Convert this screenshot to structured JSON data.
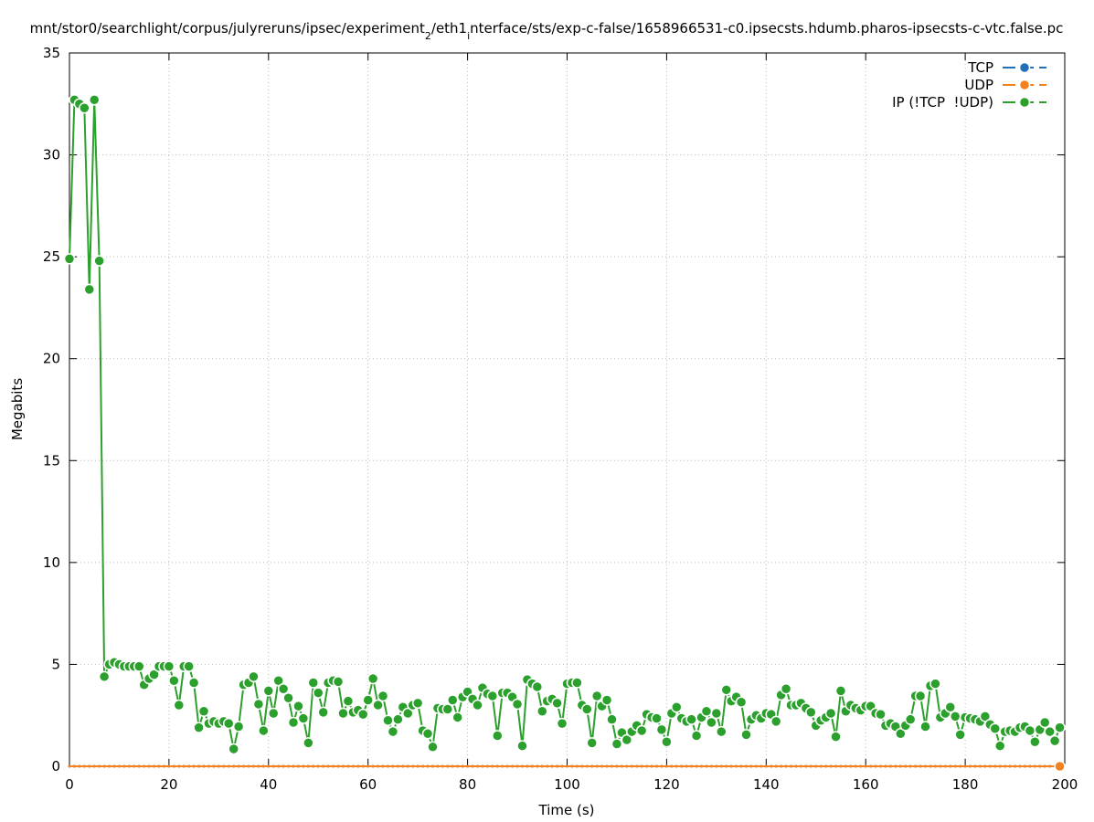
{
  "chart_data": {
    "type": "line",
    "title": [
      {
        "text": "mnt/stor0/searchlight/corpus/julyreruns/ipsec/experiment",
        "sub": false
      },
      {
        "text": "2",
        "sub": true
      },
      {
        "text": "/eth1",
        "sub": false
      },
      {
        "text": "i",
        "sub": true
      },
      {
        "text": "nterface/sts/exp-c-false/1658966531-c0.ipsecsts.hdumb.pharos-ipsecsts-c-vtc.false.pc",
        "sub": false
      }
    ],
    "x_label": "Time (s)",
    "y_label": "Megabits",
    "xlim": [
      0,
      200
    ],
    "xticks": [
      0,
      20,
      40,
      60,
      80,
      100,
      120,
      140,
      160,
      180,
      200
    ],
    "ylim": [
      0,
      35
    ],
    "yticks": [
      0,
      5,
      10,
      15,
      20,
      25,
      30,
      35
    ],
    "grid": true,
    "legend": "top-right",
    "x": [
      0,
      1,
      2,
      3,
      4,
      5,
      6,
      7,
      8,
      9,
      10,
      11,
      12,
      13,
      14,
      15,
      16,
      17,
      18,
      19,
      20,
      21,
      22,
      23,
      24,
      25,
      26,
      27,
      28,
      29,
      30,
      31,
      32,
      33,
      34,
      35,
      36,
      37,
      38,
      39,
      40,
      41,
      42,
      43,
      44,
      45,
      46,
      47,
      48,
      49,
      50,
      51,
      52,
      53,
      54,
      55,
      56,
      57,
      58,
      59,
      60,
      61,
      62,
      63,
      64,
      65,
      66,
      67,
      68,
      69,
      70,
      71,
      72,
      73,
      74,
      75,
      76,
      77,
      78,
      79,
      80,
      81,
      82,
      83,
      84,
      85,
      86,
      87,
      88,
      89,
      90,
      91,
      92,
      93,
      94,
      95,
      96,
      97,
      98,
      99,
      100,
      101,
      102,
      103,
      104,
      105,
      106,
      107,
      108,
      109,
      110,
      111,
      112,
      113,
      114,
      115,
      116,
      117,
      118,
      119,
      120,
      121,
      122,
      123,
      124,
      125,
      126,
      127,
      128,
      129,
      130,
      131,
      132,
      133,
      134,
      135,
      136,
      137,
      138,
      139,
      140,
      141,
      142,
      143,
      144,
      145,
      146,
      147,
      148,
      149,
      150,
      151,
      152,
      153,
      154,
      155,
      156,
      157,
      158,
      159,
      160,
      161,
      162,
      163,
      164,
      165,
      166,
      167,
      168,
      169,
      170,
      171,
      172,
      173,
      174,
      175,
      176,
      177,
      178,
      179,
      180,
      181,
      182,
      183,
      184,
      185,
      186,
      187,
      188,
      189,
      190,
      191,
      192,
      193,
      194,
      195,
      196,
      197,
      198,
      199
    ],
    "series": [
      {
        "name": "TCP",
        "color": "#1f6eb7",
        "values": [
          0,
          0,
          0,
          0,
          0,
          0,
          0,
          0,
          0,
          0,
          0,
          0,
          0,
          0,
          0,
          0,
          0,
          0,
          0,
          0,
          0,
          0,
          0,
          0,
          0,
          0,
          0,
          0,
          0,
          0,
          0,
          0,
          0,
          0,
          0,
          0,
          0,
          0,
          0,
          0,
          0,
          0,
          0,
          0,
          0,
          0,
          0,
          0,
          0,
          0,
          0,
          0,
          0,
          0,
          0,
          0,
          0,
          0,
          0,
          0,
          0,
          0,
          0,
          0,
          0,
          0,
          0,
          0,
          0,
          0,
          0,
          0,
          0,
          0,
          0,
          0,
          0,
          0,
          0,
          0,
          0,
          0,
          0,
          0,
          0,
          0,
          0,
          0,
          0,
          0,
          0,
          0,
          0,
          0,
          0,
          0,
          0,
          0,
          0,
          0,
          0,
          0,
          0,
          0,
          0,
          0,
          0,
          0,
          0,
          0,
          0,
          0,
          0,
          0,
          0,
          0,
          0,
          0,
          0,
          0,
          0,
          0,
          0,
          0,
          0,
          0,
          0,
          0,
          0,
          0,
          0,
          0,
          0,
          0,
          0,
          0,
          0,
          0,
          0,
          0,
          0,
          0,
          0,
          0,
          0,
          0,
          0,
          0,
          0,
          0,
          0,
          0,
          0,
          0,
          0,
          0,
          0,
          0,
          0,
          0,
          0,
          0,
          0,
          0,
          0,
          0,
          0,
          0,
          0,
          0,
          0,
          0,
          0,
          0,
          0,
          0,
          0,
          0,
          0,
          0,
          0,
          0,
          0,
          0,
          0,
          0,
          0,
          0,
          0,
          0,
          0,
          0,
          0,
          0,
          0,
          0,
          0,
          0,
          0,
          0
        ]
      },
      {
        "name": "UDP",
        "color": "#f5801e",
        "values": [
          0,
          0,
          0,
          0,
          0,
          0,
          0,
          0,
          0,
          0,
          0,
          0,
          0,
          0,
          0,
          0,
          0,
          0,
          0,
          0,
          0,
          0,
          0,
          0,
          0,
          0,
          0,
          0,
          0,
          0,
          0,
          0,
          0,
          0,
          0,
          0,
          0,
          0,
          0,
          0,
          0,
          0,
          0,
          0,
          0,
          0,
          0,
          0,
          0,
          0,
          0,
          0,
          0,
          0,
          0,
          0,
          0,
          0,
          0,
          0,
          0,
          0,
          0,
          0,
          0,
          0,
          0,
          0,
          0,
          0,
          0,
          0,
          0,
          0,
          0,
          0,
          0,
          0,
          0,
          0,
          0,
          0,
          0,
          0,
          0,
          0,
          0,
          0,
          0,
          0,
          0,
          0,
          0,
          0,
          0,
          0,
          0,
          0,
          0,
          0,
          0,
          0,
          0,
          0,
          0,
          0,
          0,
          0,
          0,
          0,
          0,
          0,
          0,
          0,
          0,
          0,
          0,
          0,
          0,
          0,
          0,
          0,
          0,
          0,
          0,
          0,
          0,
          0,
          0,
          0,
          0,
          0,
          0,
          0,
          0,
          0,
          0,
          0,
          0,
          0,
          0,
          0,
          0,
          0,
          0,
          0,
          0,
          0,
          0,
          0,
          0,
          0,
          0,
          0,
          0,
          0,
          0,
          0,
          0,
          0,
          0,
          0,
          0,
          0,
          0,
          0,
          0,
          0,
          0,
          0,
          0,
          0,
          0,
          0,
          0,
          0,
          0,
          0,
          0,
          0,
          0,
          0,
          0,
          0,
          0,
          0,
          0,
          0,
          0,
          0,
          0,
          0,
          0,
          0,
          0,
          0,
          0,
          0,
          0,
          0
        ]
      },
      {
        "name": "IP (!TCP  !UDP)",
        "color": "#2ca02c",
        "values": [
          24.9,
          32.7,
          32.5,
          32.3,
          23.4,
          32.7,
          24.8,
          4.4,
          5.0,
          5.1,
          5.0,
          4.9,
          4.9,
          4.9,
          4.9,
          4.0,
          4.3,
          4.5,
          4.9,
          4.9,
          4.9,
          4.2,
          3.0,
          4.9,
          4.9,
          4.1,
          1.9,
          2.7,
          2.1,
          2.2,
          2.1,
          2.2,
          2.1,
          0.85,
          1.95,
          4.0,
          4.1,
          4.4,
          3.05,
          1.75,
          3.7,
          2.6,
          4.2,
          3.8,
          3.35,
          2.15,
          2.95,
          2.35,
          1.15,
          4.1,
          3.6,
          2.65,
          4.1,
          4.2,
          4.15,
          2.6,
          3.2,
          2.65,
          2.75,
          2.55,
          3.25,
          4.3,
          3.0,
          3.45,
          2.25,
          1.7,
          2.3,
          2.9,
          2.6,
          3.0,
          3.1,
          1.75,
          1.6,
          0.95,
          2.85,
          2.8,
          2.8,
          3.25,
          2.4,
          3.4,
          3.65,
          3.3,
          3.0,
          3.85,
          3.55,
          3.45,
          1.5,
          3.6,
          3.6,
          3.4,
          3.05,
          1.0,
          4.25,
          4.05,
          3.9,
          2.7,
          3.2,
          3.3,
          3.1,
          2.1,
          4.05,
          4.1,
          4.1,
          3.0,
          2.8,
          1.15,
          3.45,
          2.95,
          3.25,
          2.3,
          1.1,
          1.65,
          1.3,
          1.7,
          2.0,
          1.75,
          2.55,
          2.4,
          2.35,
          1.8,
          1.2,
          2.6,
          2.9,
          2.35,
          2.2,
          2.3,
          1.5,
          2.4,
          2.7,
          2.15,
          2.6,
          1.7,
          3.75,
          3.2,
          3.4,
          3.15,
          1.55,
          2.3,
          2.5,
          2.35,
          2.6,
          2.55,
          2.2,
          3.5,
          3.8,
          3.0,
          3.0,
          3.1,
          2.85,
          2.65,
          2.0,
          2.25,
          2.4,
          2.6,
          1.45,
          3.7,
          2.7,
          3.0,
          2.85,
          2.75,
          2.95,
          2.95,
          2.6,
          2.55,
          2.0,
          2.1,
          1.95,
          1.6,
          2.0,
          2.3,
          3.45,
          3.45,
          1.95,
          3.95,
          4.05,
          2.4,
          2.6,
          2.9,
          2.45,
          1.55,
          2.4,
          2.35,
          2.3,
          2.2,
          2.45,
          2.05,
          1.85,
          1.0,
          1.7,
          1.75,
          1.7,
          1.9,
          1.95,
          1.75,
          1.2,
          1.8,
          2.15,
          1.7,
          1.25,
          1.9
        ]
      }
    ]
  }
}
